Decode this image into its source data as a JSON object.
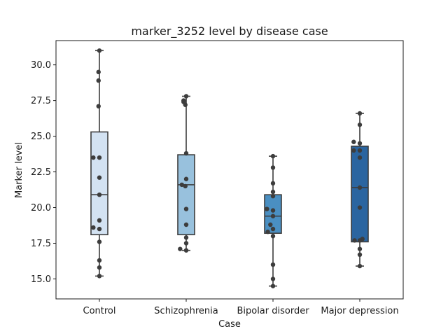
{
  "chart_data": {
    "type": "box",
    "title": "marker_3252 level by disease case",
    "xlabel": "Case",
    "ylabel": "Marker level",
    "ylim": [
      13.6,
      31.7
    ],
    "yticks": [
      15.0,
      17.5,
      20.0,
      22.5,
      25.0,
      27.5,
      30.0
    ],
    "ytick_labels": [
      "15.0",
      "17.5",
      "20.0",
      "22.5",
      "25.0",
      "27.5",
      "30.0"
    ],
    "grid": false,
    "categories": [
      "Control",
      "Schizophrenia",
      "Bipolar disorder",
      "Major depression"
    ],
    "colors": [
      "#d3e2f2",
      "#98c1dd",
      "#4a8fc2",
      "#2b65a0"
    ],
    "boxes": [
      {
        "whisker_low": 15.2,
        "q1": 18.1,
        "median": 20.9,
        "q3": 25.3,
        "whisker_high": 31.0
      },
      {
        "whisker_low": 17.0,
        "q1": 18.1,
        "median": 21.6,
        "q3": 23.7,
        "whisker_high": 27.8
      },
      {
        "whisker_low": 14.5,
        "q1": 18.2,
        "median": 19.4,
        "q3": 20.9,
        "whisker_high": 23.6
      },
      {
        "whisker_low": 15.9,
        "q1": 17.6,
        "median": 21.4,
        "q3": 24.3,
        "whisker_high": 26.6
      }
    ],
    "points": [
      {
        "category": "Control",
        "values": [
          31.0,
          29.5,
          28.9,
          27.1,
          23.5,
          23.5,
          22.1,
          20.9,
          19.1,
          18.6,
          18.5,
          17.6,
          16.3,
          15.8,
          15.2
        ],
        "offsets": [
          0.0,
          -0.01,
          -0.01,
          -0.01,
          -0.07,
          0.0,
          0.0,
          0.0,
          0.0,
          -0.07,
          0.0,
          0.0,
          0.0,
          0.0,
          0.0
        ]
      },
      {
        "category": "Schizophrenia",
        "values": [
          27.8,
          27.5,
          27.4,
          27.2,
          23.8,
          22.0,
          21.5,
          21.6,
          19.9,
          18.8,
          17.9,
          17.5,
          17.1,
          17.0
        ],
        "offsets": [
          0.0,
          -0.03,
          -0.03,
          -0.01,
          0.0,
          0.0,
          -0.01,
          -0.05,
          0.0,
          0.0,
          0.0,
          0.0,
          -0.07,
          0.0
        ]
      },
      {
        "category": "Bipolar disorder",
        "values": [
          23.6,
          22.8,
          21.7,
          21.1,
          20.8,
          19.9,
          19.8,
          19.4,
          18.8,
          18.5,
          18.3,
          18.0,
          16.0,
          15.0,
          14.5
        ],
        "offsets": [
          0.0,
          0.0,
          0.0,
          0.0,
          0.0,
          -0.07,
          0.0,
          0.0,
          -0.03,
          0.0,
          -0.06,
          0.0,
          0.0,
          0.0,
          0.0
        ]
      },
      {
        "category": "Major depression",
        "values": [
          26.6,
          25.8,
          24.6,
          24.5,
          24.0,
          24.0,
          23.5,
          21.4,
          20.0,
          17.8,
          17.7,
          17.7,
          17.1,
          16.7,
          15.9
        ],
        "offsets": [
          0.0,
          0.0,
          -0.07,
          0.0,
          -0.07,
          0.0,
          0.0,
          0.0,
          0.0,
          0.03,
          -0.06,
          0.0,
          0.0,
          0.0,
          0.0
        ]
      }
    ]
  }
}
